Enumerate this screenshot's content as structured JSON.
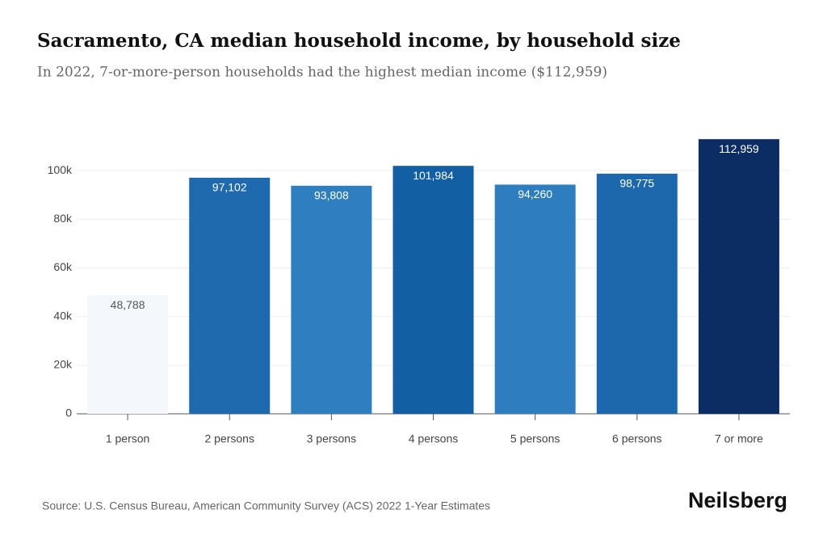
{
  "chart_data": {
    "type": "bar",
    "title": "Sacramento, CA median household income, by household size",
    "subtitle": "In 2022, 7-or-more-person households had the highest median income ($112,959)",
    "categories": [
      "1 person",
      "2 persons",
      "3 persons",
      "4 persons",
      "5 persons",
      "6 persons",
      "7 or more"
    ],
    "values": [
      48788,
      97102,
      93808,
      101984,
      94260,
      98775,
      112959
    ],
    "value_labels": [
      "48,788",
      "97,102",
      "93,808",
      "101,984",
      "94,260",
      "98,775",
      "112,959"
    ],
    "colors": [
      "#f4f8fd",
      "#1f6aaf",
      "#2f7fc0",
      "#135fa4",
      "#2e7ebf",
      "#1d68ad",
      "#0b2d64"
    ],
    "ylim": [
      0,
      120000
    ],
    "yticks": [
      0,
      {
        "value": 20000,
        "label": "20k"
      },
      {
        "value": 40000,
        "label": "40k"
      },
      {
        "value": 60000,
        "label": "60k"
      },
      {
        "value": 80000,
        "label": "80k"
      },
      {
        "value": 100000,
        "label": "100k"
      }
    ],
    "grid": true,
    "source": "Source: U.S. Census Bureau, American Community Survey (ACS) 2022 1-Year Estimates",
    "brand": "Neilsberg"
  }
}
